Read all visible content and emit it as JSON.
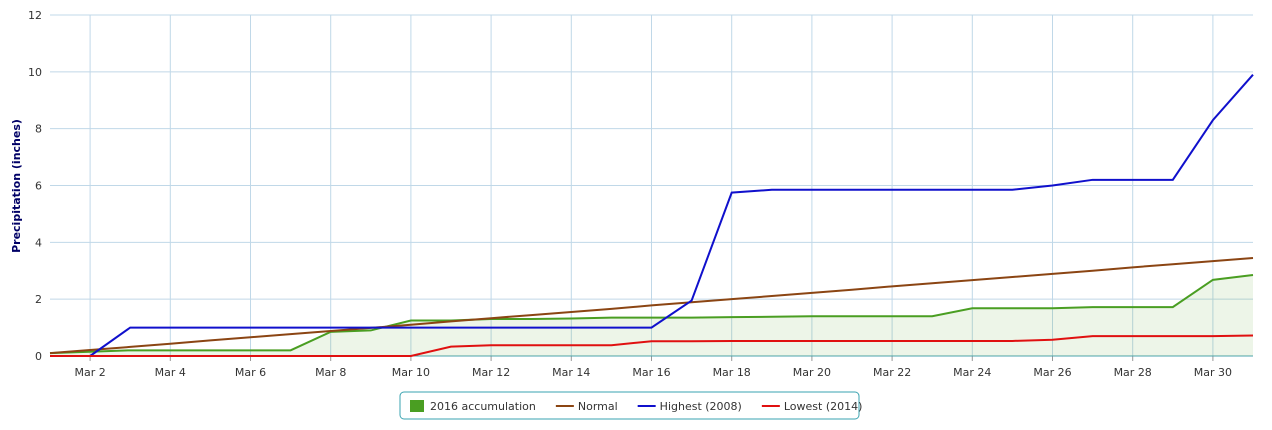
{
  "chart_data": {
    "type": "line",
    "y_label": "Precipitation (inches)",
    "categories": [
      null,
      "Mar 2",
      null,
      "Mar 4",
      null,
      "Mar 6",
      null,
      "Mar 8",
      null,
      "Mar 10",
      null,
      "Mar 12",
      null,
      "Mar 14",
      null,
      "Mar 16",
      null,
      "Mar 18",
      null,
      "Mar 20",
      null,
      "Mar 22",
      null,
      "Mar 24",
      null,
      "Mar 26",
      null,
      "Mar 28",
      null,
      "Mar 30",
      null
    ],
    "ylim": [
      0,
      12
    ],
    "yticks": [
      0,
      2,
      4,
      6,
      8,
      10,
      12
    ],
    "grid": true,
    "legend": "bottom",
    "series": [
      {
        "name": "2016 accumulation",
        "color": "#4a9e22",
        "style": "area",
        "values": [
          0.1,
          0.15,
          0.2,
          0.2,
          0.2,
          0.2,
          0.2,
          0.85,
          0.9,
          1.25,
          1.25,
          1.3,
          1.3,
          1.32,
          1.35,
          1.35,
          1.35,
          1.37,
          1.38,
          1.4,
          1.4,
          1.4,
          1.4,
          1.68,
          1.68,
          1.68,
          1.72,
          1.72,
          1.72,
          2.68,
          2.85
        ]
      },
      {
        "name": "Normal",
        "color": "#8b4513",
        "style": "line",
        "values": [
          0.1,
          0.21,
          0.32,
          0.43,
          0.55,
          0.66,
          0.77,
          0.88,
          0.99,
          1.1,
          1.22,
          1.33,
          1.44,
          1.55,
          1.66,
          1.78,
          1.89,
          2.0,
          2.11,
          2.22,
          2.33,
          2.45,
          2.56,
          2.67,
          2.78,
          2.89,
          3.0,
          3.12,
          3.23,
          3.34,
          3.45
        ]
      },
      {
        "name": "Highest (2008)",
        "color": "#1010cc",
        "style": "line",
        "values": [
          null,
          0,
          1.0,
          1.0,
          1.0,
          1.0,
          1.0,
          1.0,
          1.0,
          1.0,
          1.0,
          1.0,
          1.0,
          1.0,
          1.0,
          1.0,
          1.95,
          5.75,
          5.85,
          5.85,
          5.85,
          5.85,
          5.85,
          5.85,
          5.85,
          6.0,
          6.2,
          6.2,
          6.2,
          8.3,
          9.9
        ]
      },
      {
        "name": "Lowest (2014)",
        "color": "#e01010",
        "style": "line",
        "values": [
          0,
          0,
          0,
          0,
          0,
          0,
          0,
          0,
          0,
          0,
          0.33,
          0.38,
          0.38,
          0.38,
          0.38,
          0.52,
          0.52,
          0.53,
          0.53,
          0.53,
          0.53,
          0.53,
          0.53,
          0.53,
          0.53,
          0.57,
          0.7,
          0.7,
          0.7,
          0.7,
          0.72
        ]
      }
    ]
  }
}
